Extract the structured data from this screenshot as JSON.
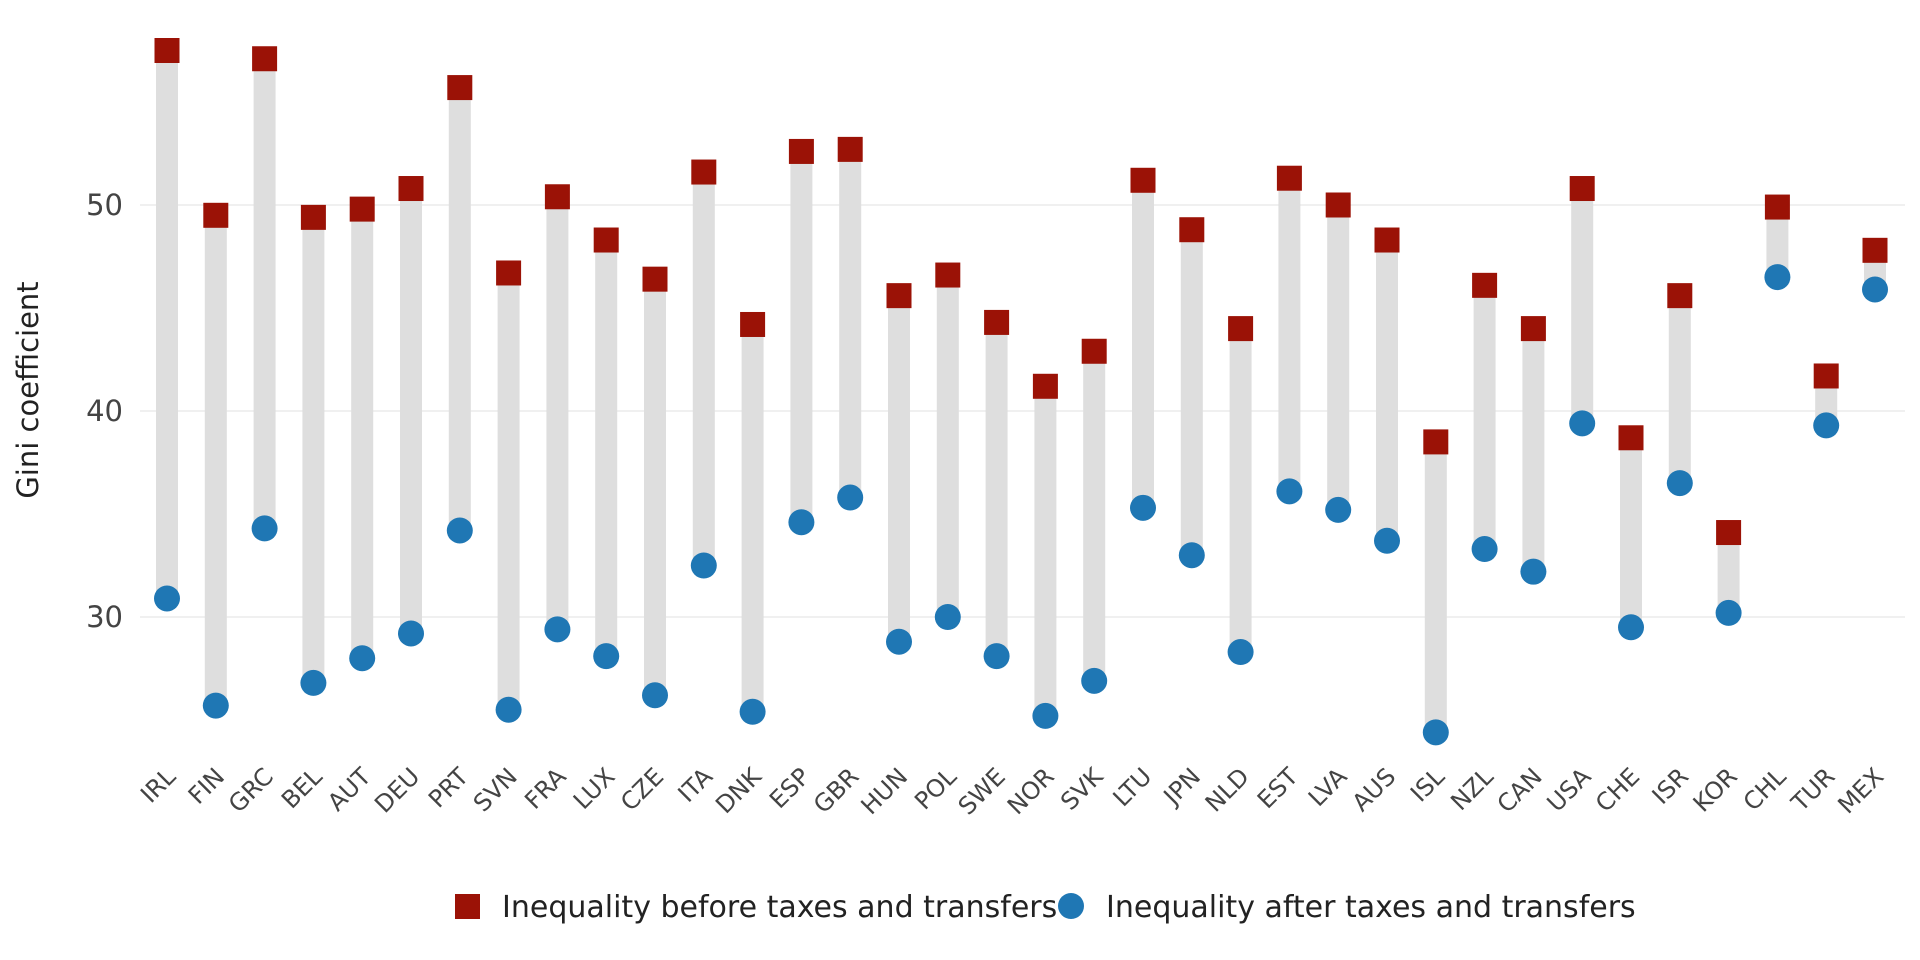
{
  "chart_data": {
    "type": "dumbbell",
    "ylabel": "Gini coefficient",
    "ylim": [
      23.6,
      58.4
    ],
    "yticks": [
      30,
      40,
      50
    ],
    "grid": true,
    "legend_position": "bottom",
    "categories": [
      "IRL",
      "FIN",
      "GRC",
      "BEL",
      "AUT",
      "DEU",
      "PRT",
      "SVN",
      "FRA",
      "LUX",
      "CZE",
      "ITA",
      "DNK",
      "ESP",
      "GBR",
      "HUN",
      "POL",
      "SWE",
      "NOR",
      "SVK",
      "LTU",
      "JPN",
      "NLD",
      "EST",
      "LVA",
      "AUS",
      "ISL",
      "NZL",
      "CAN",
      "USA",
      "CHE",
      "ISR",
      "KOR",
      "CHL",
      "TUR",
      "MEX"
    ],
    "series": [
      {
        "name": "Inequality before taxes and transfers",
        "marker": "square",
        "color": "#9b1206",
        "values": [
          57.5,
          49.5,
          57.1,
          49.4,
          49.8,
          50.8,
          55.7,
          46.7,
          50.4,
          48.3,
          46.4,
          51.6,
          44.2,
          52.6,
          52.7,
          45.6,
          46.6,
          44.3,
          41.2,
          42.9,
          51.2,
          48.8,
          44.0,
          51.3,
          50.0,
          48.3,
          38.5,
          46.1,
          44.0,
          50.8,
          38.7,
          45.6,
          34.1,
          49.9,
          41.7,
          47.8
        ]
      },
      {
        "name": "Inequality after taxes and transfers",
        "marker": "circle",
        "color": "#1f77b4",
        "values": [
          30.9,
          25.7,
          34.3,
          26.8,
          28.0,
          29.2,
          34.2,
          25.5,
          29.4,
          28.1,
          26.2,
          32.5,
          25.4,
          34.6,
          35.8,
          28.8,
          30.0,
          28.1,
          25.2,
          26.9,
          35.3,
          33.0,
          28.3,
          36.1,
          35.2,
          33.7,
          24.4,
          33.3,
          32.2,
          39.4,
          29.5,
          36.5,
          30.2,
          46.5,
          39.3,
          45.9
        ]
      }
    ]
  }
}
